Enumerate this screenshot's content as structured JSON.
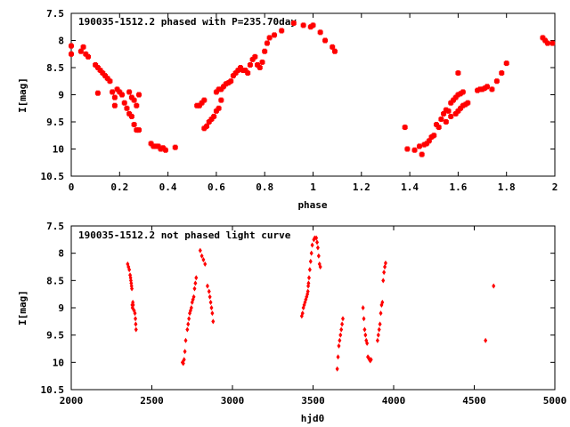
{
  "chart_data": [
    {
      "type": "scatter",
      "title": "190035-1512.2 phased with P=235.70day",
      "xlabel": "phase",
      "ylabel": "I[mag]",
      "xlim": [
        0,
        2
      ],
      "ylim": [
        10.5,
        7.5
      ],
      "y_inverted": true,
      "grid": false,
      "marker_color": "#ff0000",
      "xticks": [
        "0",
        "0.2",
        "0.4",
        "0.6",
        "0.8",
        "1",
        "1.2",
        "1.4",
        "1.6",
        "1.8",
        "2"
      ],
      "xtick_values": [
        0,
        0.2,
        0.4,
        0.6,
        0.8,
        1.0,
        1.2,
        1.4,
        1.6,
        1.8,
        2.0
      ],
      "yticks": [
        "7.5",
        "8",
        "8.5",
        "9",
        "9.5",
        "10",
        "10.5"
      ],
      "ytick_values": [
        7.5,
        8.0,
        8.5,
        9.0,
        9.5,
        10.0,
        10.5
      ],
      "points": [
        [
          0.0,
          8.1
        ],
        [
          0.0,
          8.25
        ],
        [
          0.04,
          8.2
        ],
        [
          0.05,
          8.12
        ],
        [
          0.06,
          8.25
        ],
        [
          0.07,
          8.3
        ],
        [
          0.1,
          8.45
        ],
        [
          0.11,
          8.5
        ],
        [
          0.12,
          8.55
        ],
        [
          0.13,
          8.6
        ],
        [
          0.14,
          8.65
        ],
        [
          0.15,
          8.7
        ],
        [
          0.16,
          8.75
        ],
        [
          0.11,
          8.97
        ],
        [
          0.17,
          8.95
        ],
        [
          0.18,
          9.05
        ],
        [
          0.18,
          9.2
        ],
        [
          0.19,
          8.9
        ],
        [
          0.2,
          8.95
        ],
        [
          0.21,
          9.0
        ],
        [
          0.22,
          9.15
        ],
        [
          0.23,
          9.25
        ],
        [
          0.24,
          9.35
        ],
        [
          0.25,
          9.4
        ],
        [
          0.26,
          9.55
        ],
        [
          0.27,
          9.65
        ],
        [
          0.28,
          9.65
        ],
        [
          0.24,
          8.95
        ],
        [
          0.25,
          9.05
        ],
        [
          0.26,
          9.1
        ],
        [
          0.27,
          9.2
        ],
        [
          0.28,
          9.0
        ],
        [
          0.33,
          9.9
        ],
        [
          0.34,
          9.95
        ],
        [
          0.35,
          9.95
        ],
        [
          0.36,
          9.95
        ],
        [
          0.37,
          10.0
        ],
        [
          0.38,
          9.98
        ],
        [
          0.39,
          10.02
        ],
        [
          0.43,
          9.97
        ],
        [
          0.52,
          9.2
        ],
        [
          0.53,
          9.2
        ],
        [
          0.54,
          9.15
        ],
        [
          0.55,
          9.1
        ],
        [
          0.55,
          9.62
        ],
        [
          0.56,
          9.58
        ],
        [
          0.57,
          9.5
        ],
        [
          0.58,
          9.45
        ],
        [
          0.59,
          9.4
        ],
        [
          0.6,
          9.3
        ],
        [
          0.61,
          9.25
        ],
        [
          0.62,
          9.1
        ],
        [
          0.6,
          8.95
        ],
        [
          0.61,
          8.9
        ],
        [
          0.62,
          8.9
        ],
        [
          0.63,
          8.85
        ],
        [
          0.64,
          8.8
        ],
        [
          0.65,
          8.78
        ],
        [
          0.66,
          8.75
        ],
        [
          0.67,
          8.65
        ],
        [
          0.68,
          8.6
        ],
        [
          0.69,
          8.55
        ],
        [
          0.7,
          8.5
        ],
        [
          0.71,
          8.55
        ],
        [
          0.72,
          8.55
        ],
        [
          0.73,
          8.6
        ],
        [
          0.74,
          8.45
        ],
        [
          0.75,
          8.35
        ],
        [
          0.76,
          8.3
        ],
        [
          0.77,
          8.45
        ],
        [
          0.78,
          8.5
        ],
        [
          0.79,
          8.4
        ],
        [
          0.8,
          8.2
        ],
        [
          0.81,
          8.05
        ],
        [
          0.82,
          7.95
        ],
        [
          0.84,
          7.9
        ],
        [
          0.87,
          7.82
        ],
        [
          0.92,
          7.68
        ],
        [
          0.96,
          7.72
        ],
        [
          0.99,
          7.75
        ],
        [
          1.0,
          7.72
        ],
        [
          1.03,
          7.85
        ],
        [
          1.05,
          8.0
        ],
        [
          1.08,
          8.12
        ],
        [
          1.09,
          8.2
        ],
        [
          1.38,
          9.6
        ],
        [
          1.39,
          10.0
        ],
        [
          1.42,
          10.02
        ],
        [
          1.44,
          9.95
        ],
        [
          1.45,
          10.1
        ],
        [
          1.46,
          9.92
        ],
        [
          1.47,
          9.9
        ],
        [
          1.48,
          9.85
        ],
        [
          1.49,
          9.78
        ],
        [
          1.5,
          9.75
        ],
        [
          1.51,
          9.55
        ],
        [
          1.52,
          9.6
        ],
        [
          1.53,
          9.45
        ],
        [
          1.54,
          9.35
        ],
        [
          1.55,
          9.28
        ],
        [
          1.56,
          9.3
        ],
        [
          1.57,
          9.15
        ],
        [
          1.58,
          9.1
        ],
        [
          1.59,
          9.05
        ],
        [
          1.6,
          9.0
        ],
        [
          1.61,
          8.98
        ],
        [
          1.62,
          8.95
        ],
        [
          1.55,
          9.5
        ],
        [
          1.57,
          9.4
        ],
        [
          1.59,
          9.35
        ],
        [
          1.6,
          9.3
        ],
        [
          1.61,
          9.25
        ],
        [
          1.62,
          9.2
        ],
        [
          1.63,
          9.18
        ],
        [
          1.64,
          9.15
        ],
        [
          1.6,
          8.6
        ],
        [
          1.68,
          8.92
        ],
        [
          1.69,
          8.9
        ],
        [
          1.7,
          8.9
        ],
        [
          1.71,
          8.88
        ],
        [
          1.72,
          8.85
        ],
        [
          1.74,
          8.9
        ],
        [
          1.76,
          8.75
        ],
        [
          1.78,
          8.6
        ],
        [
          1.8,
          8.42
        ],
        [
          1.95,
          7.95
        ],
        [
          1.96,
          8.0
        ],
        [
          1.97,
          8.05
        ],
        [
          1.99,
          8.05
        ]
      ]
    },
    {
      "type": "scatter",
      "title": "190035-1512.2 not phased light curve",
      "xlabel": "hjd0",
      "ylabel": "I[mag]",
      "xlim": [
        2000,
        5000
      ],
      "ylim": [
        10.5,
        7.5
      ],
      "y_inverted": true,
      "grid": false,
      "marker_color": "#ff0000",
      "xticks": [
        "2000",
        "2500",
        "3000",
        "3500",
        "4000",
        "4500",
        "5000"
      ],
      "xtick_values": [
        2000,
        2500,
        3000,
        3500,
        4000,
        4500,
        5000
      ],
      "yticks": [
        "7.5",
        "8",
        "8.5",
        "9",
        "9.5",
        "10",
        "10.5"
      ],
      "ytick_values": [
        7.5,
        8.0,
        8.5,
        9.0,
        9.5,
        10.0,
        10.5
      ],
      "points": [
        [
          2350,
          8.2
        ],
        [
          2355,
          8.25
        ],
        [
          2360,
          8.3
        ],
        [
          2365,
          8.4
        ],
        [
          2368,
          8.45
        ],
        [
          2370,
          8.5
        ],
        [
          2372,
          8.55
        ],
        [
          2374,
          8.6
        ],
        [
          2376,
          8.65
        ],
        [
          2378,
          8.95
        ],
        [
          2380,
          9.0
        ],
        [
          2382,
          8.9
        ],
        [
          2384,
          8.95
        ],
        [
          2390,
          9.05
        ],
        [
          2395,
          9.1
        ],
        [
          2398,
          9.2
        ],
        [
          2400,
          9.3
        ],
        [
          2402,
          9.4
        ],
        [
          2690,
          10.0
        ],
        [
          2695,
          10.02
        ],
        [
          2700,
          9.95
        ],
        [
          2705,
          9.8
        ],
        [
          2710,
          9.6
        ],
        [
          2720,
          9.4
        ],
        [
          2725,
          9.3
        ],
        [
          2730,
          9.2
        ],
        [
          2735,
          9.1
        ],
        [
          2740,
          9.05
        ],
        [
          2745,
          9.0
        ],
        [
          2750,
          8.9
        ],
        [
          2755,
          8.85
        ],
        [
          2760,
          8.8
        ],
        [
          2765,
          8.65
        ],
        [
          2770,
          8.55
        ],
        [
          2775,
          8.45
        ],
        [
          2800,
          7.95
        ],
        [
          2810,
          8.05
        ],
        [
          2820,
          8.12
        ],
        [
          2830,
          8.2
        ],
        [
          2845,
          8.6
        ],
        [
          2855,
          8.7
        ],
        [
          2860,
          8.8
        ],
        [
          2865,
          8.9
        ],
        [
          2870,
          9.0
        ],
        [
          2875,
          9.1
        ],
        [
          2880,
          9.25
        ],
        [
          3430,
          9.15
        ],
        [
          3435,
          9.1
        ],
        [
          3440,
          9.0
        ],
        [
          3445,
          8.95
        ],
        [
          3450,
          8.9
        ],
        [
          3455,
          8.85
        ],
        [
          3460,
          8.8
        ],
        [
          3465,
          8.75
        ],
        [
          3468,
          8.7
        ],
        [
          3470,
          8.6
        ],
        [
          3472,
          8.55
        ],
        [
          3475,
          8.45
        ],
        [
          3480,
          8.3
        ],
        [
          3485,
          8.15
        ],
        [
          3490,
          8.0
        ],
        [
          3495,
          7.85
        ],
        [
          3505,
          7.75
        ],
        [
          3510,
          7.72
        ],
        [
          3520,
          7.72
        ],
        [
          3525,
          7.8
        ],
        [
          3530,
          7.9
        ],
        [
          3535,
          8.05
        ],
        [
          3540,
          8.2
        ],
        [
          3545,
          8.25
        ],
        [
          3650,
          10.12
        ],
        [
          3655,
          9.9
        ],
        [
          3660,
          9.7
        ],
        [
          3665,
          9.6
        ],
        [
          3670,
          9.5
        ],
        [
          3675,
          9.4
        ],
        [
          3680,
          9.3
        ],
        [
          3685,
          9.2
        ],
        [
          3810,
          9.0
        ],
        [
          3815,
          9.2
        ],
        [
          3820,
          9.4
        ],
        [
          3825,
          9.5
        ],
        [
          3830,
          9.6
        ],
        [
          3835,
          9.65
        ],
        [
          3840,
          9.9
        ],
        [
          3845,
          9.92
        ],
        [
          3850,
          9.95
        ],
        [
          3855,
          9.97
        ],
        [
          3860,
          9.95
        ],
        [
          3900,
          9.6
        ],
        [
          3905,
          9.5
        ],
        [
          3910,
          9.4
        ],
        [
          3915,
          9.3
        ],
        [
          3920,
          9.1
        ],
        [
          3925,
          8.95
        ],
        [
          3930,
          8.9
        ],
        [
          3935,
          8.5
        ],
        [
          3940,
          8.35
        ],
        [
          3945,
          8.25
        ],
        [
          3950,
          8.18
        ],
        [
          4570,
          9.6
        ],
        [
          4620,
          8.6
        ]
      ]
    }
  ]
}
